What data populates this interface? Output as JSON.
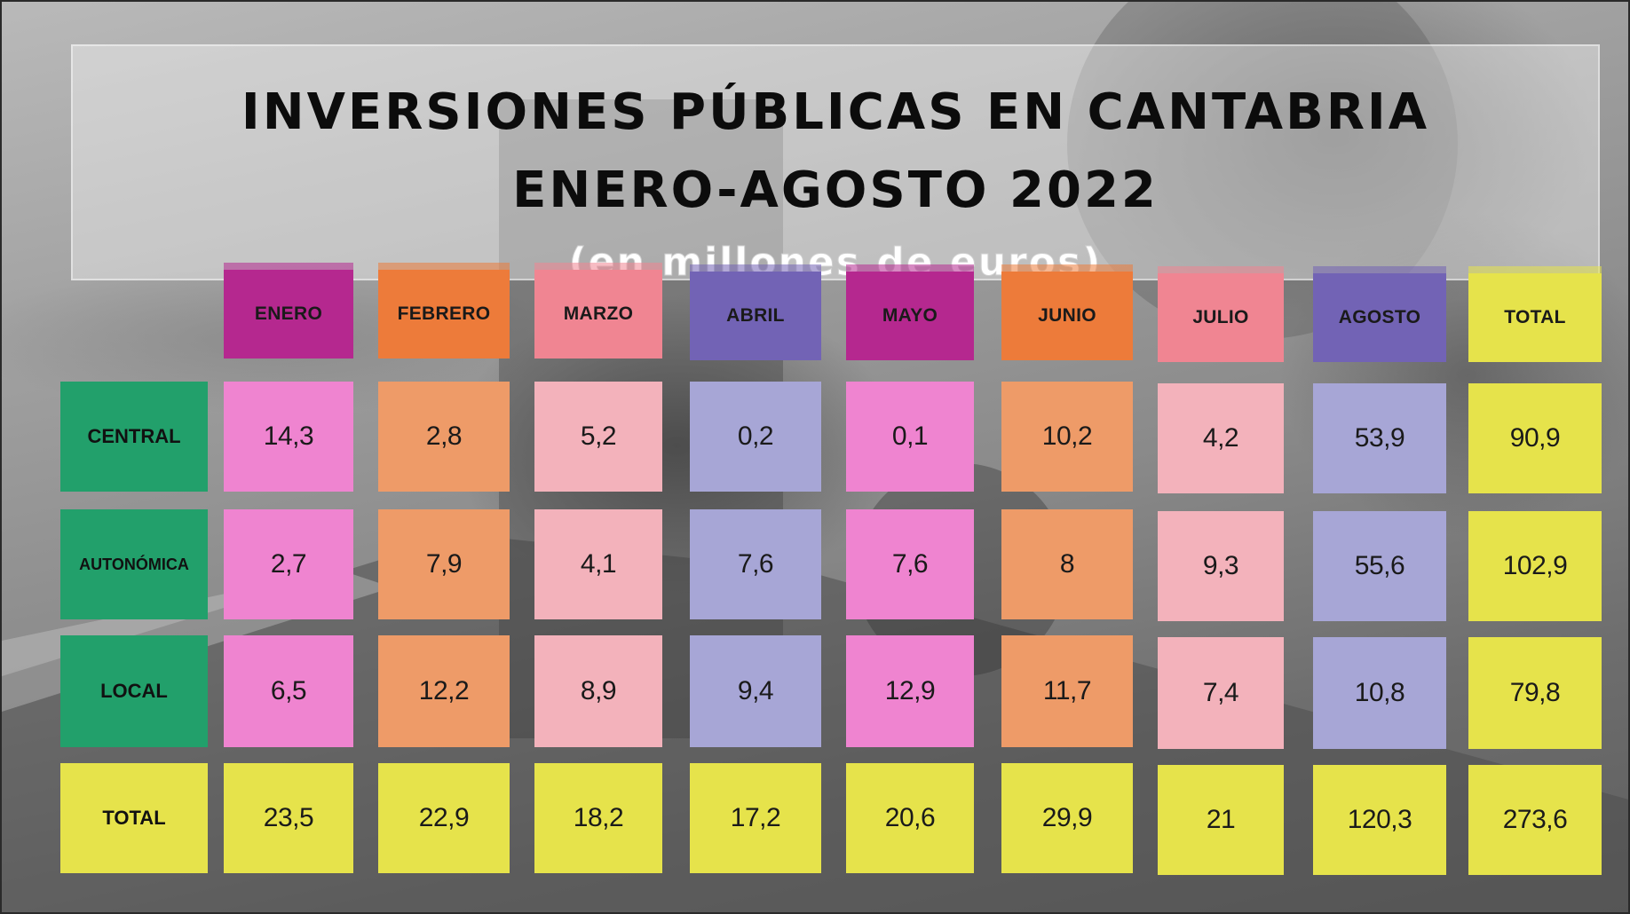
{
  "title": "INVERSIONES PÚBLICAS EN CANTABRIA",
  "subtitle": "ENERO-AGOSTO 2022",
  "unit_note": "(en millones de euros)",
  "colors": {
    "enero_header": "#b5288f",
    "febrero_header": "#ed7b3a",
    "marzo_header": "#f08592",
    "abril_header": "#7263b5",
    "mayo_header": "#b5288f",
    "junio_header": "#ed7b3a",
    "julio_header": "#f08592",
    "agosto_header": "#7263b5",
    "total": "#e6e34b",
    "row_label": "#22a06b",
    "enero_cell": "#ef84d0",
    "febrero_cell": "#ee9b68",
    "marzo_cell": "#f3b2bb",
    "abril_cell": "#a7a6d6",
    "mayo_cell": "#ef84d0",
    "junio_cell": "#ee9b68",
    "julio_cell": "#f3b2bb",
    "agosto_cell": "#a7a6d6"
  },
  "chart_data": {
    "type": "table",
    "title": "INVERSIONES PÚBLICAS EN CANTABRIA",
    "subtitle": "ENERO-AGOSTO 2022",
    "note": "(en millones de euros)",
    "columns": [
      "ENERO",
      "FEBRERO",
      "MARZO",
      "ABRIL",
      "MAYO",
      "JUNIO",
      "JULIO",
      "AGOSTO",
      "TOTAL"
    ],
    "rows": [
      {
        "label": "CENTRAL",
        "values": [
          "14,3",
          "2,8",
          "5,2",
          "0,2",
          "0,1",
          "10,2",
          "4,2",
          "53,9",
          "90,9"
        ]
      },
      {
        "label": "AUTONÓMICA",
        "values": [
          "2,7",
          "7,9",
          "4,1",
          "7,6",
          "7,6",
          "8",
          "9,3",
          "55,6",
          "102,9"
        ]
      },
      {
        "label": "LOCAL",
        "values": [
          "6,5",
          "12,2",
          "8,9",
          "9,4",
          "12,9",
          "11,7",
          "7,4",
          "10,8",
          "79,8"
        ]
      },
      {
        "label": "TOTAL",
        "values": [
          "23,5",
          "22,9",
          "18,2",
          "17,2",
          "20,6",
          "29,9",
          "21",
          "120,3",
          "273,6"
        ]
      }
    ]
  }
}
